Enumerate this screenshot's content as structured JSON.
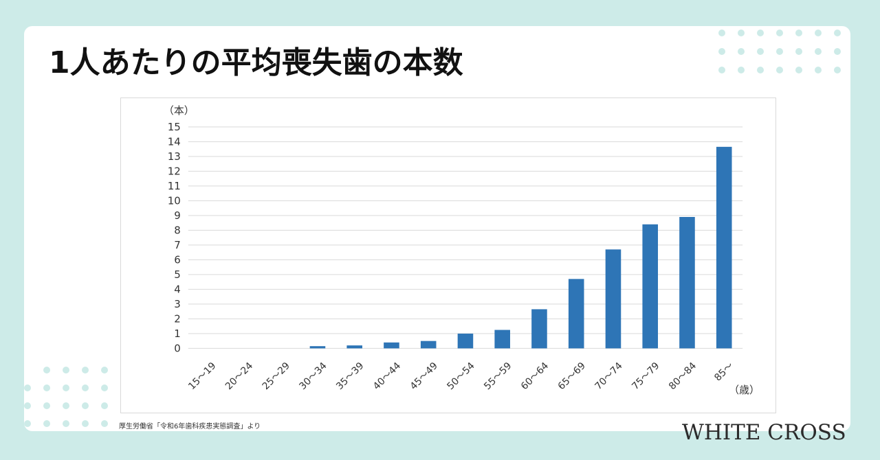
{
  "title": "1人あたりの平均喪失歯の本数",
  "source": "厚生労働省「令和6年歯科疾患実態調査」より",
  "brand": "WHITE CROSS",
  "colors": {
    "background": "#cdebe8",
    "card": "#ffffff",
    "bar": "#2e75b6",
    "decor_dots": "#cdebe8"
  },
  "chart_data": {
    "type": "bar",
    "title": "",
    "ylabel": "（本）",
    "xlabel": "（歳）",
    "ylim": [
      0,
      15
    ],
    "yticks": [
      0,
      1,
      2,
      3,
      4,
      5,
      6,
      7,
      8,
      9,
      10,
      11,
      12,
      13,
      14,
      15
    ],
    "grid": true,
    "categories": [
      "15～19",
      "20～24",
      "25～29",
      "30～34",
      "35～39",
      "40～44",
      "45～49",
      "50～54",
      "55～59",
      "60～64",
      "65～69",
      "70～74",
      "75～79",
      "80～84",
      "85～"
    ],
    "values": [
      0,
      0,
      0,
      0.15,
      0.2,
      0.4,
      0.5,
      1.0,
      1.25,
      2.65,
      4.7,
      6.7,
      8.4,
      8.9,
      13.65
    ]
  }
}
